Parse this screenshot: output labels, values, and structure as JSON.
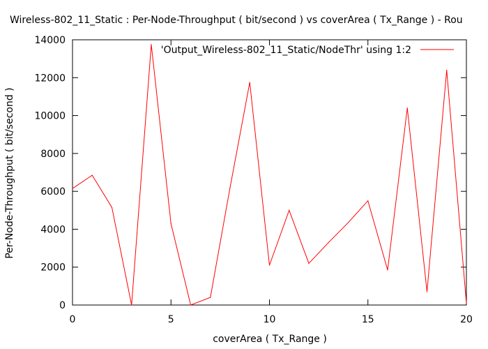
{
  "chart_data": {
    "type": "line",
    "title": "Wireless-802_11_Static : Per-Node-Throughput ( bit/second ) vs coverArea ( Tx_Range ) - Rou",
    "xlabel": "coverArea ( Tx_Range )",
    "ylabel": "Per-Node-Throughput ( bit/second )",
    "xlim": [
      0,
      20
    ],
    "ylim": [
      0,
      14000
    ],
    "xticks": [
      0,
      5,
      10,
      15,
      20
    ],
    "yticks": [
      0,
      2000,
      4000,
      6000,
      8000,
      10000,
      12000,
      14000
    ],
    "grid": false,
    "legend_position": "top-right",
    "series": [
      {
        "name": "'Output_Wireless-802_11_Static/NodeThr' using 1:2",
        "color": "#ff0000",
        "x": [
          0,
          1,
          2,
          3,
          4,
          5,
          6,
          7,
          8,
          9,
          10,
          11,
          12,
          13,
          14,
          15,
          16,
          17,
          18,
          19,
          20
        ],
        "y": [
          6150,
          6850,
          5150,
          0,
          13750,
          4300,
          0,
          400,
          6200,
          11750,
          2100,
          5000,
          2200,
          3300,
          4350,
          5500,
          1850,
          10400,
          700,
          12400,
          100
        ]
      }
    ]
  }
}
